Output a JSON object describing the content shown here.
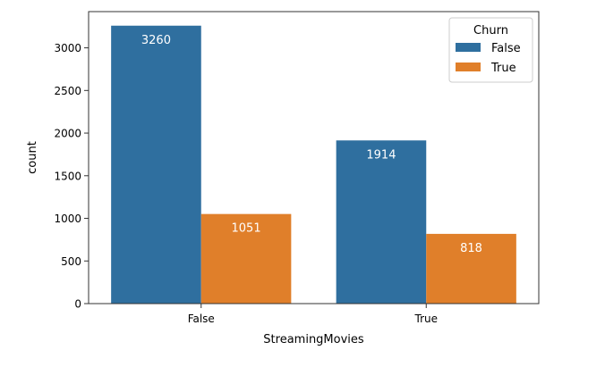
{
  "chart_data": {
    "type": "bar",
    "title": "",
    "xlabel": "StreamingMovies",
    "ylabel": "count",
    "categories": [
      "False",
      "True"
    ],
    "ylim": [
      0,
      3425
    ],
    "yticks": [
      0,
      500,
      1000,
      1500,
      2000,
      2500,
      3000
    ],
    "grid": false,
    "legend": {
      "title": "Churn",
      "placement": "top-right"
    },
    "series": [
      {
        "name": "False",
        "color": "#2f6f9f",
        "values": [
          3260,
          1914
        ]
      },
      {
        "name": "True",
        "color": "#e07f2a",
        "values": [
          1051,
          818
        ]
      }
    ],
    "data_labels": true
  }
}
